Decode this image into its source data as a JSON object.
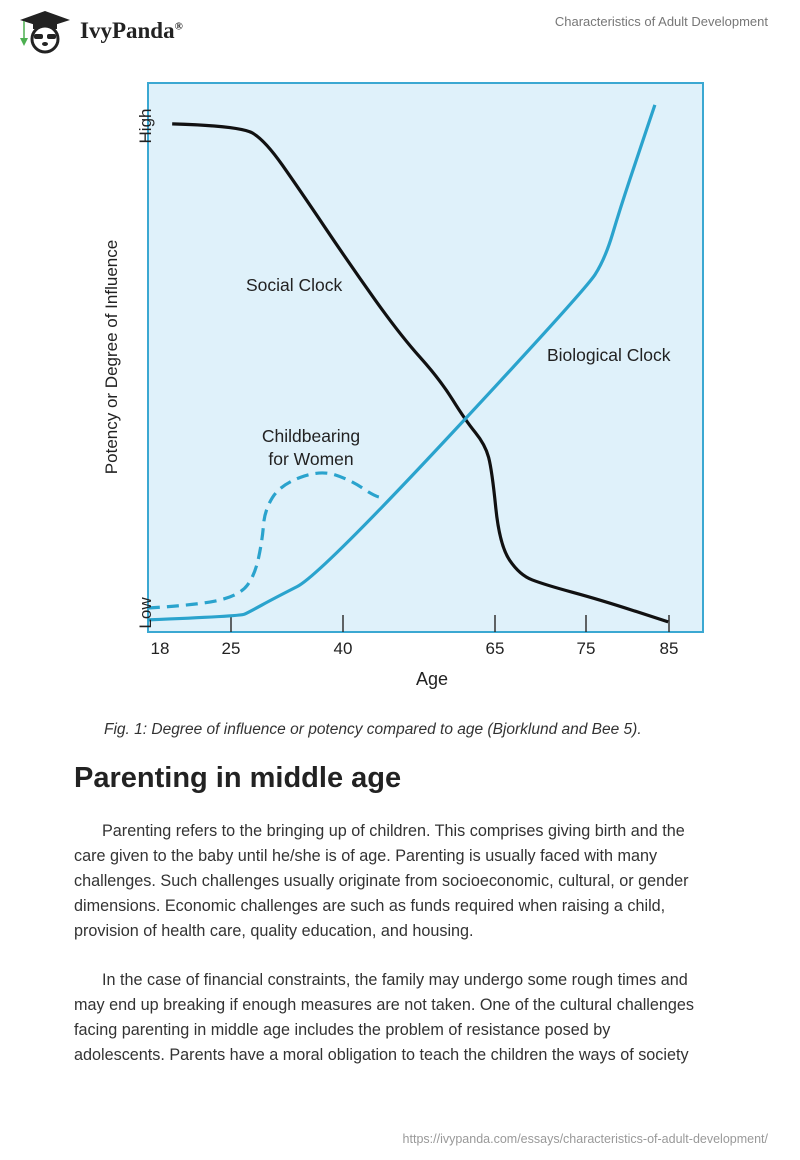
{
  "header": {
    "brand": "IvyPanda",
    "brand_mark": "®",
    "doc_title": "Characteristics of Adult Development"
  },
  "chart_data": {
    "type": "line",
    "title": "",
    "xlabel": "Age",
    "ylabel": "Potency or Degree of Influence",
    "x_ticks": [
      18,
      25,
      40,
      65,
      75,
      85
    ],
    "y_ticks": [
      "Low",
      "High"
    ],
    "xlim": [
      16.8,
      89
    ],
    "ylim": [
      0,
      1
    ],
    "grid": false,
    "colors": {
      "background": "#dff1fa",
      "frame": "#3ba8d2",
      "social": "#111111",
      "biological": "#2aa3cd"
    },
    "series": [
      {
        "name": "Social Clock",
        "style": "solid",
        "points": [
          [
            19.2,
            0.973
          ],
          [
            26.2,
            0.969
          ],
          [
            29.5,
            0.942
          ],
          [
            34.2,
            0.845
          ],
          [
            41.2,
            0.699
          ],
          [
            49.4,
            0.563
          ],
          [
            56,
            0.476
          ],
          [
            60.1,
            0.398
          ],
          [
            63.4,
            0.35
          ],
          [
            64.5,
            0.301
          ],
          [
            65.5,
            0.155
          ],
          [
            67.7,
            0.097
          ],
          [
            70.5,
            0.078
          ],
          [
            76.7,
            0.049
          ],
          [
            84.9,
            0.006
          ]
        ]
      },
      {
        "name": "Biological Clock",
        "style": "solid",
        "points": [
          [
            16.8,
            0.01
          ],
          [
            26.2,
            0.017
          ],
          [
            27.4,
            0.025
          ],
          [
            30.8,
            0.052
          ],
          [
            36.9,
            0.097
          ],
          [
            74.9,
            0.65
          ],
          [
            77.3,
            0.711
          ],
          [
            79.1,
            0.808
          ],
          [
            81.5,
            0.924
          ],
          [
            83.3,
            1.01
          ]
        ]
      },
      {
        "name": "Childbearing for Women",
        "label_lines": [
          "Childbearing",
          "for Women"
        ],
        "style": "dashed",
        "points": [
          [
            16.8,
            0.033
          ],
          [
            21.9,
            0.039
          ],
          [
            26.2,
            0.058
          ],
          [
            28.2,
            0.097
          ],
          [
            29.2,
            0.165
          ],
          [
            29.5,
            0.223
          ],
          [
            31.6,
            0.272
          ],
          [
            36.9,
            0.301
          ],
          [
            41.2,
            0.282
          ],
          [
            45.3,
            0.249
          ],
          [
            47,
            0.247
          ]
        ]
      }
    ]
  },
  "caption": "Fig. 1: Degree of influence or potency compared to age (Bjorklund and Bee 5).",
  "section": {
    "heading": "Parenting in middle age",
    "paragraphs": [
      [
        "Parenting refers to the bringing up of children. This comprises giving birth and the",
        "care given to the baby until he/she is of age. Parenting is usually faced with many",
        "challenges. Such challenges usually originate from socioeconomic, cultural, or gender",
        "dimensions. Economic challenges are such as funds required when raising a child,",
        "provision of health care, quality education, and housing."
      ],
      [
        "In the case of financial constraints, the family may undergo some rough times and",
        "may end up breaking if enough measures are not taken. One of the cultural challenges",
        "facing parenting in middle age includes the problem of resistance posed by",
        "adolescents. Parents have a moral obligation to teach the children the ways of society"
      ]
    ]
  },
  "footer": {
    "url": "https://ivypanda.com/essays/characteristics-of-adult-development/"
  }
}
